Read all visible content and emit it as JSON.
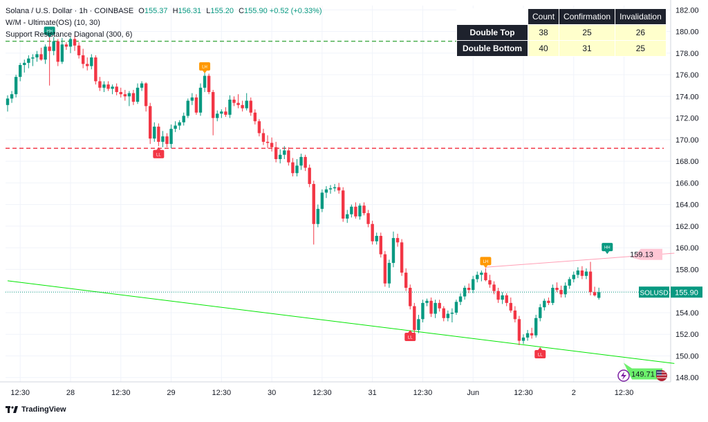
{
  "header": {
    "symbol": "Solana / U.S. Dollar · 1h · COINBASE",
    "o_label": "O",
    "o_val": "155.37",
    "h_label": "H",
    "h_val": "156.31",
    "l_label": "L",
    "l_val": "155.20",
    "c_label": "C",
    "c_val": "155.90",
    "change": "+0.52 (+0.33%)",
    "indicator1": "W/M - Ultimate(OS) (10, 30)",
    "indicator2": "Support Resistance Diagonal (300, 6)"
  },
  "stats_table": {
    "headers": [
      "",
      "Count",
      "Confirmation",
      "Invalidation"
    ],
    "rows": [
      {
        "name": "Double Top",
        "count": "38",
        "confirmation": "25",
        "invalidation": "26"
      },
      {
        "name": "Double Bottom",
        "count": "40",
        "confirmation": "31",
        "invalidation": "25"
      }
    ]
  },
  "footer": {
    "brand": "TradingView"
  },
  "colors": {
    "up": "#089981",
    "down": "#f23645",
    "resistance": "#ff9eb5",
    "support": "#00e600",
    "dashed_green": "#4caf50",
    "dashed_red": "#f23645",
    "label_orange": "#ff9800"
  },
  "chart_data": {
    "type": "candlestick",
    "symbol_label": "SOLUSD",
    "last_price": 155.9,
    "last_price_label": "155.90",
    "ylim": [
      147.6,
      182.4
    ],
    "y_ticks": [
      148.0,
      150.0,
      152.0,
      154.0,
      156.0,
      158.0,
      160.0,
      162.0,
      164.0,
      166.0,
      168.0,
      170.0,
      172.0,
      174.0,
      176.0,
      178.0,
      180.0,
      182.0
    ],
    "x_ticks": [
      {
        "i": 3,
        "label": "12:30"
      },
      {
        "i": 15,
        "label": "28"
      },
      {
        "i": 27,
        "label": "12:30"
      },
      {
        "i": 39,
        "label": "29"
      },
      {
        "i": 51,
        "label": "12:30"
      },
      {
        "i": 63,
        "label": "30"
      },
      {
        "i": 75,
        "label": "12:30"
      },
      {
        "i": 87,
        "label": "31"
      },
      {
        "i": 99,
        "label": "12:30"
      },
      {
        "i": 111,
        "label": "Jun"
      },
      {
        "i": 123,
        "label": "12:30"
      },
      {
        "i": 135,
        "label": "2"
      },
      {
        "i": 147,
        "label": "12:30"
      }
    ],
    "horizontal_levels": [
      {
        "price": 179.1,
        "type": "dashed",
        "color": "#4caf50"
      },
      {
        "price": 169.2,
        "type": "dashed",
        "color": "#f23645"
      }
    ],
    "trendlines": [
      {
        "name": "resistance",
        "from": [
          114,
          158.2
        ],
        "to": [
          159,
          159.5
        ],
        "color": "#ff9eb5",
        "label": "159.13"
      },
      {
        "name": "support",
        "from": [
          0,
          156.95
        ],
        "to": [
          159,
          149.3
        ],
        "color": "#00e600",
        "label": "149.71"
      }
    ],
    "pivot_labels": [
      {
        "text": "HH",
        "i": 10,
        "price": 179.3,
        "color": "#089981",
        "pos": "above"
      },
      {
        "text": "LH",
        "i": 47,
        "price": 176.0,
        "color": "#ff9800",
        "pos": "above"
      },
      {
        "text": "LL",
        "i": 36,
        "price": 169.3,
        "color": "#f23645",
        "pos": "below"
      },
      {
        "text": "LL",
        "i": 96,
        "price": 152.4,
        "color": "#f23645",
        "pos": "below"
      },
      {
        "text": "LH",
        "i": 114,
        "price": 158.0,
        "color": "#ff9800",
        "pos": "above"
      },
      {
        "text": "LL",
        "i": 127,
        "price": 150.8,
        "color": "#f23645",
        "pos": "below"
      },
      {
        "text": "HH",
        "i": 143,
        "price": 159.3,
        "color": "#089981",
        "pos": "above"
      }
    ],
    "candles": [
      [
        173.2,
        174.1,
        172.6,
        173.8
      ],
      [
        173.8,
        174.5,
        173.4,
        174.2
      ],
      [
        174.2,
        176.0,
        173.9,
        175.8
      ],
      [
        175.8,
        177.1,
        175.4,
        176.9
      ],
      [
        176.9,
        177.4,
        176.2,
        177.1
      ],
      [
        177.1,
        177.8,
        176.6,
        177.5
      ],
      [
        177.5,
        177.9,
        176.8,
        177.6
      ],
      [
        177.6,
        178.2,
        177.2,
        177.9
      ],
      [
        177.9,
        178.5,
        177.3,
        177.4
      ],
      [
        177.4,
        178.8,
        177.0,
        178.6
      ],
      [
        178.6,
        179.8,
        175.0,
        178.2
      ],
      [
        178.2,
        179.5,
        177.8,
        179.1
      ],
      [
        179.1,
        179.3,
        176.8,
        177.2
      ],
      [
        177.2,
        179.4,
        177.0,
        178.8
      ],
      [
        178.8,
        179.0,
        178.3,
        178.6
      ],
      [
        178.6,
        179.5,
        178.0,
        179.3
      ],
      [
        179.3,
        179.6,
        178.2,
        178.7
      ],
      [
        178.7,
        179.0,
        177.5,
        177.8
      ],
      [
        177.8,
        178.4,
        176.6,
        177.0
      ],
      [
        177.0,
        177.6,
        176.4,
        176.8
      ],
      [
        176.8,
        177.9,
        176.5,
        177.6
      ],
      [
        177.6,
        177.8,
        175.1,
        175.4
      ],
      [
        175.4,
        175.8,
        174.5,
        174.8
      ],
      [
        174.8,
        175.4,
        174.4,
        175.1
      ],
      [
        175.1,
        175.4,
        174.5,
        174.7
      ],
      [
        174.7,
        175.1,
        174.2,
        174.9
      ],
      [
        174.9,
        175.2,
        174.1,
        174.4
      ],
      [
        174.4,
        174.8,
        173.9,
        174.2
      ],
      [
        174.2,
        174.6,
        173.6,
        174.0
      ],
      [
        174.0,
        174.5,
        173.1,
        174.3
      ],
      [
        174.3,
        174.6,
        173.2,
        173.5
      ],
      [
        173.5,
        175.2,
        173.3,
        174.8
      ],
      [
        174.8,
        175.4,
        174.5,
        175.2
      ],
      [
        175.2,
        175.3,
        172.6,
        173.1
      ],
      [
        173.1,
        173.4,
        169.6,
        170.1
      ],
      [
        170.1,
        171.6,
        169.8,
        171.2
      ],
      [
        171.2,
        171.5,
        169.4,
        169.8
      ],
      [
        169.8,
        170.8,
        169.3,
        170.3
      ],
      [
        170.3,
        170.6,
        169.3,
        169.6
      ],
      [
        169.6,
        171.4,
        169.2,
        171.0
      ],
      [
        171.0,
        171.7,
        170.7,
        171.3
      ],
      [
        171.3,
        171.8,
        170.9,
        171.6
      ],
      [
        171.6,
        172.5,
        171.3,
        172.2
      ],
      [
        172.2,
        173.8,
        172.0,
        173.6
      ],
      [
        173.6,
        174.3,
        173.2,
        173.9
      ],
      [
        173.9,
        174.2,
        172.3,
        172.5
      ],
      [
        172.5,
        175.2,
        172.2,
        174.8
      ],
      [
        174.8,
        176.2,
        174.4,
        175.9
      ],
      [
        175.9,
        176.1,
        174.2,
        174.4
      ],
      [
        174.4,
        174.6,
        170.4,
        172.0
      ],
      [
        172.0,
        172.7,
        171.7,
        172.4
      ],
      [
        172.4,
        172.8,
        172.0,
        172.6
      ],
      [
        172.6,
        173.0,
        172.1,
        172.3
      ],
      [
        172.3,
        174.1,
        172.0,
        173.7
      ],
      [
        173.7,
        174.0,
        173.1,
        173.4
      ],
      [
        173.4,
        174.2,
        172.9,
        173.2
      ],
      [
        173.2,
        173.6,
        172.6,
        172.9
      ],
      [
        172.9,
        174.3,
        172.7,
        173.6
      ],
      [
        173.6,
        173.9,
        172.2,
        172.5
      ],
      [
        172.5,
        172.8,
        171.4,
        171.7
      ],
      [
        171.7,
        171.9,
        170.3,
        170.6
      ],
      [
        170.6,
        171.0,
        169.5,
        169.8
      ],
      [
        169.8,
        170.4,
        169.2,
        169.7
      ],
      [
        169.7,
        170.2,
        168.9,
        169.3
      ],
      [
        169.3,
        169.8,
        167.9,
        168.2
      ],
      [
        168.2,
        169.1,
        167.8,
        168.6
      ],
      [
        168.6,
        169.4,
        168.2,
        169.0
      ],
      [
        169.0,
        169.3,
        167.6,
        167.9
      ],
      [
        167.9,
        168.3,
        166.6,
        166.9
      ],
      [
        166.9,
        168.2,
        166.6,
        167.6
      ],
      [
        167.6,
        168.7,
        167.2,
        168.4
      ],
      [
        168.4,
        168.6,
        167.1,
        167.4
      ],
      [
        167.4,
        167.7,
        165.6,
        165.9
      ],
      [
        165.9,
        166.2,
        160.3,
        162.2
      ],
      [
        162.2,
        164.0,
        161.9,
        163.6
      ],
      [
        163.6,
        165.4,
        163.3,
        165.1
      ],
      [
        165.1,
        165.7,
        164.6,
        165.4
      ],
      [
        165.4,
        165.8,
        165.0,
        165.5
      ],
      [
        165.5,
        165.9,
        165.2,
        165.6
      ],
      [
        165.6,
        166.0,
        165.0,
        165.3
      ],
      [
        165.3,
        165.6,
        162.4,
        162.7
      ],
      [
        162.7,
        163.5,
        162.3,
        163.1
      ],
      [
        163.1,
        164.0,
        162.8,
        163.8
      ],
      [
        163.8,
        164.2,
        162.7,
        162.9
      ],
      [
        162.9,
        164.1,
        162.6,
        163.9
      ],
      [
        163.9,
        164.2,
        163.0,
        163.2
      ],
      [
        163.2,
        163.5,
        161.9,
        162.2
      ],
      [
        162.2,
        162.5,
        160.3,
        160.6
      ],
      [
        160.6,
        161.4,
        160.3,
        161.1
      ],
      [
        161.1,
        161.4,
        159.1,
        159.4
      ],
      [
        159.4,
        159.7,
        156.4,
        156.7
      ],
      [
        156.7,
        158.9,
        156.3,
        158.6
      ],
      [
        158.6,
        161.5,
        158.2,
        160.9
      ],
      [
        160.9,
        161.3,
        160.1,
        160.5
      ],
      [
        160.5,
        160.8,
        157.4,
        157.7
      ],
      [
        157.7,
        158.1,
        156.0,
        156.3
      ],
      [
        156.3,
        156.6,
        154.3,
        154.6
      ],
      [
        154.6,
        154.9,
        152.1,
        152.4
      ],
      [
        152.4,
        153.8,
        152.1,
        153.4
      ],
      [
        153.4,
        155.2,
        153.1,
        154.9
      ],
      [
        154.9,
        155.3,
        154.6,
        155.1
      ],
      [
        155.1,
        155.4,
        153.6,
        153.9
      ],
      [
        153.9,
        155.2,
        153.5,
        154.9
      ],
      [
        154.9,
        155.2,
        154.1,
        154.4
      ],
      [
        154.4,
        154.6,
        153.2,
        153.5
      ],
      [
        153.5,
        154.2,
        153.2,
        153.9
      ],
      [
        153.9,
        154.4,
        153.1,
        154.0
      ],
      [
        154.0,
        155.2,
        153.8,
        155.0
      ],
      [
        155.0,
        155.8,
        154.7,
        155.5
      ],
      [
        155.5,
        156.5,
        155.2,
        156.3
      ],
      [
        156.3,
        156.7,
        155.8,
        156.1
      ],
      [
        156.1,
        157.4,
        155.8,
        157.1
      ],
      [
        157.1,
        157.8,
        156.8,
        157.5
      ],
      [
        157.5,
        157.9,
        156.9,
        157.7
      ],
      [
        157.7,
        158.1,
        156.9,
        157.0
      ],
      [
        157.0,
        157.5,
        156.3,
        156.6
      ],
      [
        156.6,
        156.9,
        155.7,
        156.0
      ],
      [
        156.0,
        156.3,
        154.9,
        155.2
      ],
      [
        155.2,
        155.9,
        154.8,
        155.6
      ],
      [
        155.6,
        155.8,
        154.6,
        154.9
      ],
      [
        154.9,
        155.4,
        154.0,
        154.2
      ],
      [
        154.2,
        154.6,
        153.1,
        153.4
      ],
      [
        153.4,
        153.7,
        151.0,
        151.4
      ],
      [
        151.4,
        152.0,
        151.1,
        151.7
      ],
      [
        151.7,
        152.4,
        151.4,
        152.1
      ],
      [
        152.1,
        152.6,
        151.6,
        151.9
      ],
      [
        151.9,
        153.8,
        151.7,
        153.5
      ],
      [
        153.5,
        154.8,
        153.2,
        154.5
      ],
      [
        154.5,
        155.3,
        154.2,
        155.1
      ],
      [
        155.1,
        155.4,
        154.7,
        154.9
      ],
      [
        154.9,
        156.6,
        154.7,
        156.3
      ],
      [
        156.3,
        156.8,
        155.9,
        156.1
      ],
      [
        156.1,
        156.5,
        155.4,
        155.7
      ],
      [
        155.7,
        156.8,
        155.4,
        156.5
      ],
      [
        156.5,
        157.3,
        156.2,
        157.1
      ],
      [
        157.1,
        157.8,
        156.8,
        157.5
      ],
      [
        157.5,
        158.2,
        157.2,
        157.9
      ],
      [
        157.9,
        158.3,
        157.1,
        157.4
      ],
      [
        157.4,
        158.1,
        157.1,
        157.8
      ],
      [
        157.8,
        158.7,
        155.6,
        155.9
      ],
      [
        155.9,
        156.4,
        155.5,
        155.6
      ],
      [
        155.37,
        156.31,
        155.2,
        155.9
      ]
    ]
  }
}
